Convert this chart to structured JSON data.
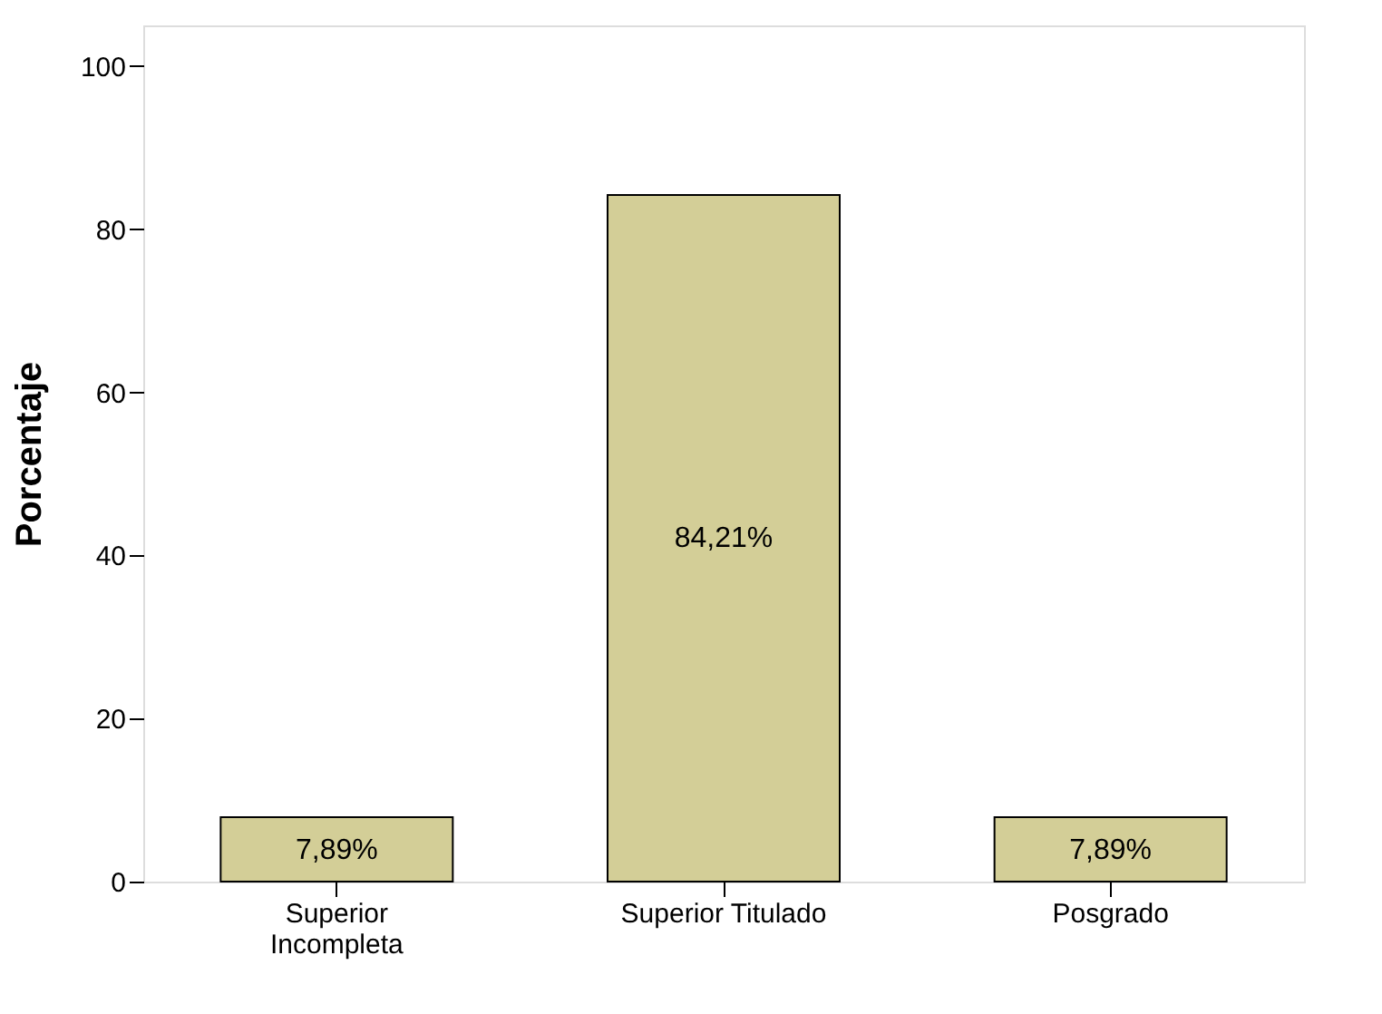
{
  "chart_data": {
    "type": "bar",
    "ylabel": "Porcentaje",
    "categories": [
      "Superior Incompleta",
      "Superior Titulado",
      "Posgrado"
    ],
    "values": [
      7.89,
      84.21,
      7.89
    ],
    "color": "#d3ce97",
    "value_labels": [
      "7,89%",
      "84,21%",
      "7,89%"
    ],
    "ylim": [
      0,
      105
    ],
    "yticks": [
      0,
      20,
      40,
      60,
      80,
      100
    ],
    "grid": false
  }
}
